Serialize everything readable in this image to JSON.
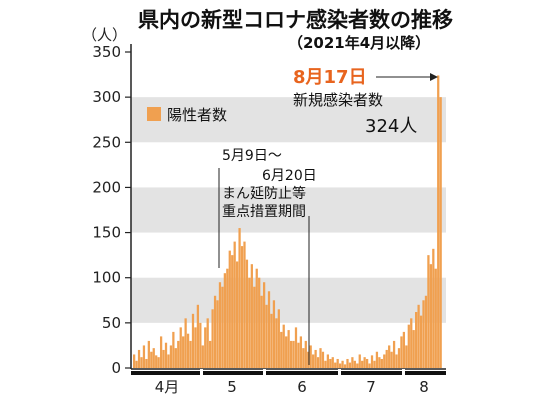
{
  "chart_data": {
    "type": "bar",
    "title": "県内の新型コロナ感染者数の推移",
    "subtitle": "（2021年4月以降）",
    "ylabel": "（人）",
    "xlabel": "",
    "ylim": [
      0,
      350
    ],
    "yticks": [
      0,
      50,
      100,
      150,
      200,
      250,
      300,
      350
    ],
    "grid": "alternating horizontal bands",
    "legend": {
      "position": "top-left",
      "entries": [
        "陽性者数"
      ]
    },
    "month_labels": [
      "4月",
      "5",
      "6",
      "7",
      "8"
    ],
    "colors": {
      "bar": "#f0a050",
      "band": "#e3e3e3",
      "highlight": "#e8641e",
      "axis": "#222222"
    },
    "annotations": {
      "period_1": "5月9日～",
      "period_2": "6月20日",
      "period_3": "まん延防止等",
      "period_4": "重点措置期間",
      "peak_date": "8月17日",
      "peak_label": "新規感染者数",
      "peak_value": "324人"
    },
    "series": [
      {
        "name": "陽性者数",
        "values": [
          15,
          8,
          20,
          12,
          25,
          10,
          30,
          18,
          22,
          14,
          12,
          35,
          20,
          28,
          15,
          25,
          40,
          22,
          30,
          45,
          35,
          55,
          38,
          30,
          60,
          45,
          70,
          50,
          25,
          45,
          55,
          30,
          65,
          80,
          75,
          95,
          90,
          105,
          110,
          130,
          125,
          140,
          118,
          155,
          135,
          140,
          120,
          100,
          115,
          90,
          110,
          100,
          80,
          95,
          70,
          85,
          60,
          75,
          55,
          65,
          40,
          48,
          35,
          42,
          30,
          30,
          45,
          28,
          35,
          22,
          30,
          18,
          25,
          15,
          20,
          12,
          22,
          18,
          8,
          15,
          10,
          12,
          6,
          10,
          5,
          8,
          4,
          10,
          6,
          12,
          8,
          5,
          15,
          8,
          12,
          10,
          5,
          14,
          8,
          18,
          12,
          10,
          15,
          20,
          25,
          18,
          30,
          15,
          22,
          35,
          40,
          25,
          48,
          55,
          42,
          62,
          70,
          58,
          75,
          80,
          125,
          115,
          132,
          110,
          324,
          300
        ]
      }
    ]
  }
}
